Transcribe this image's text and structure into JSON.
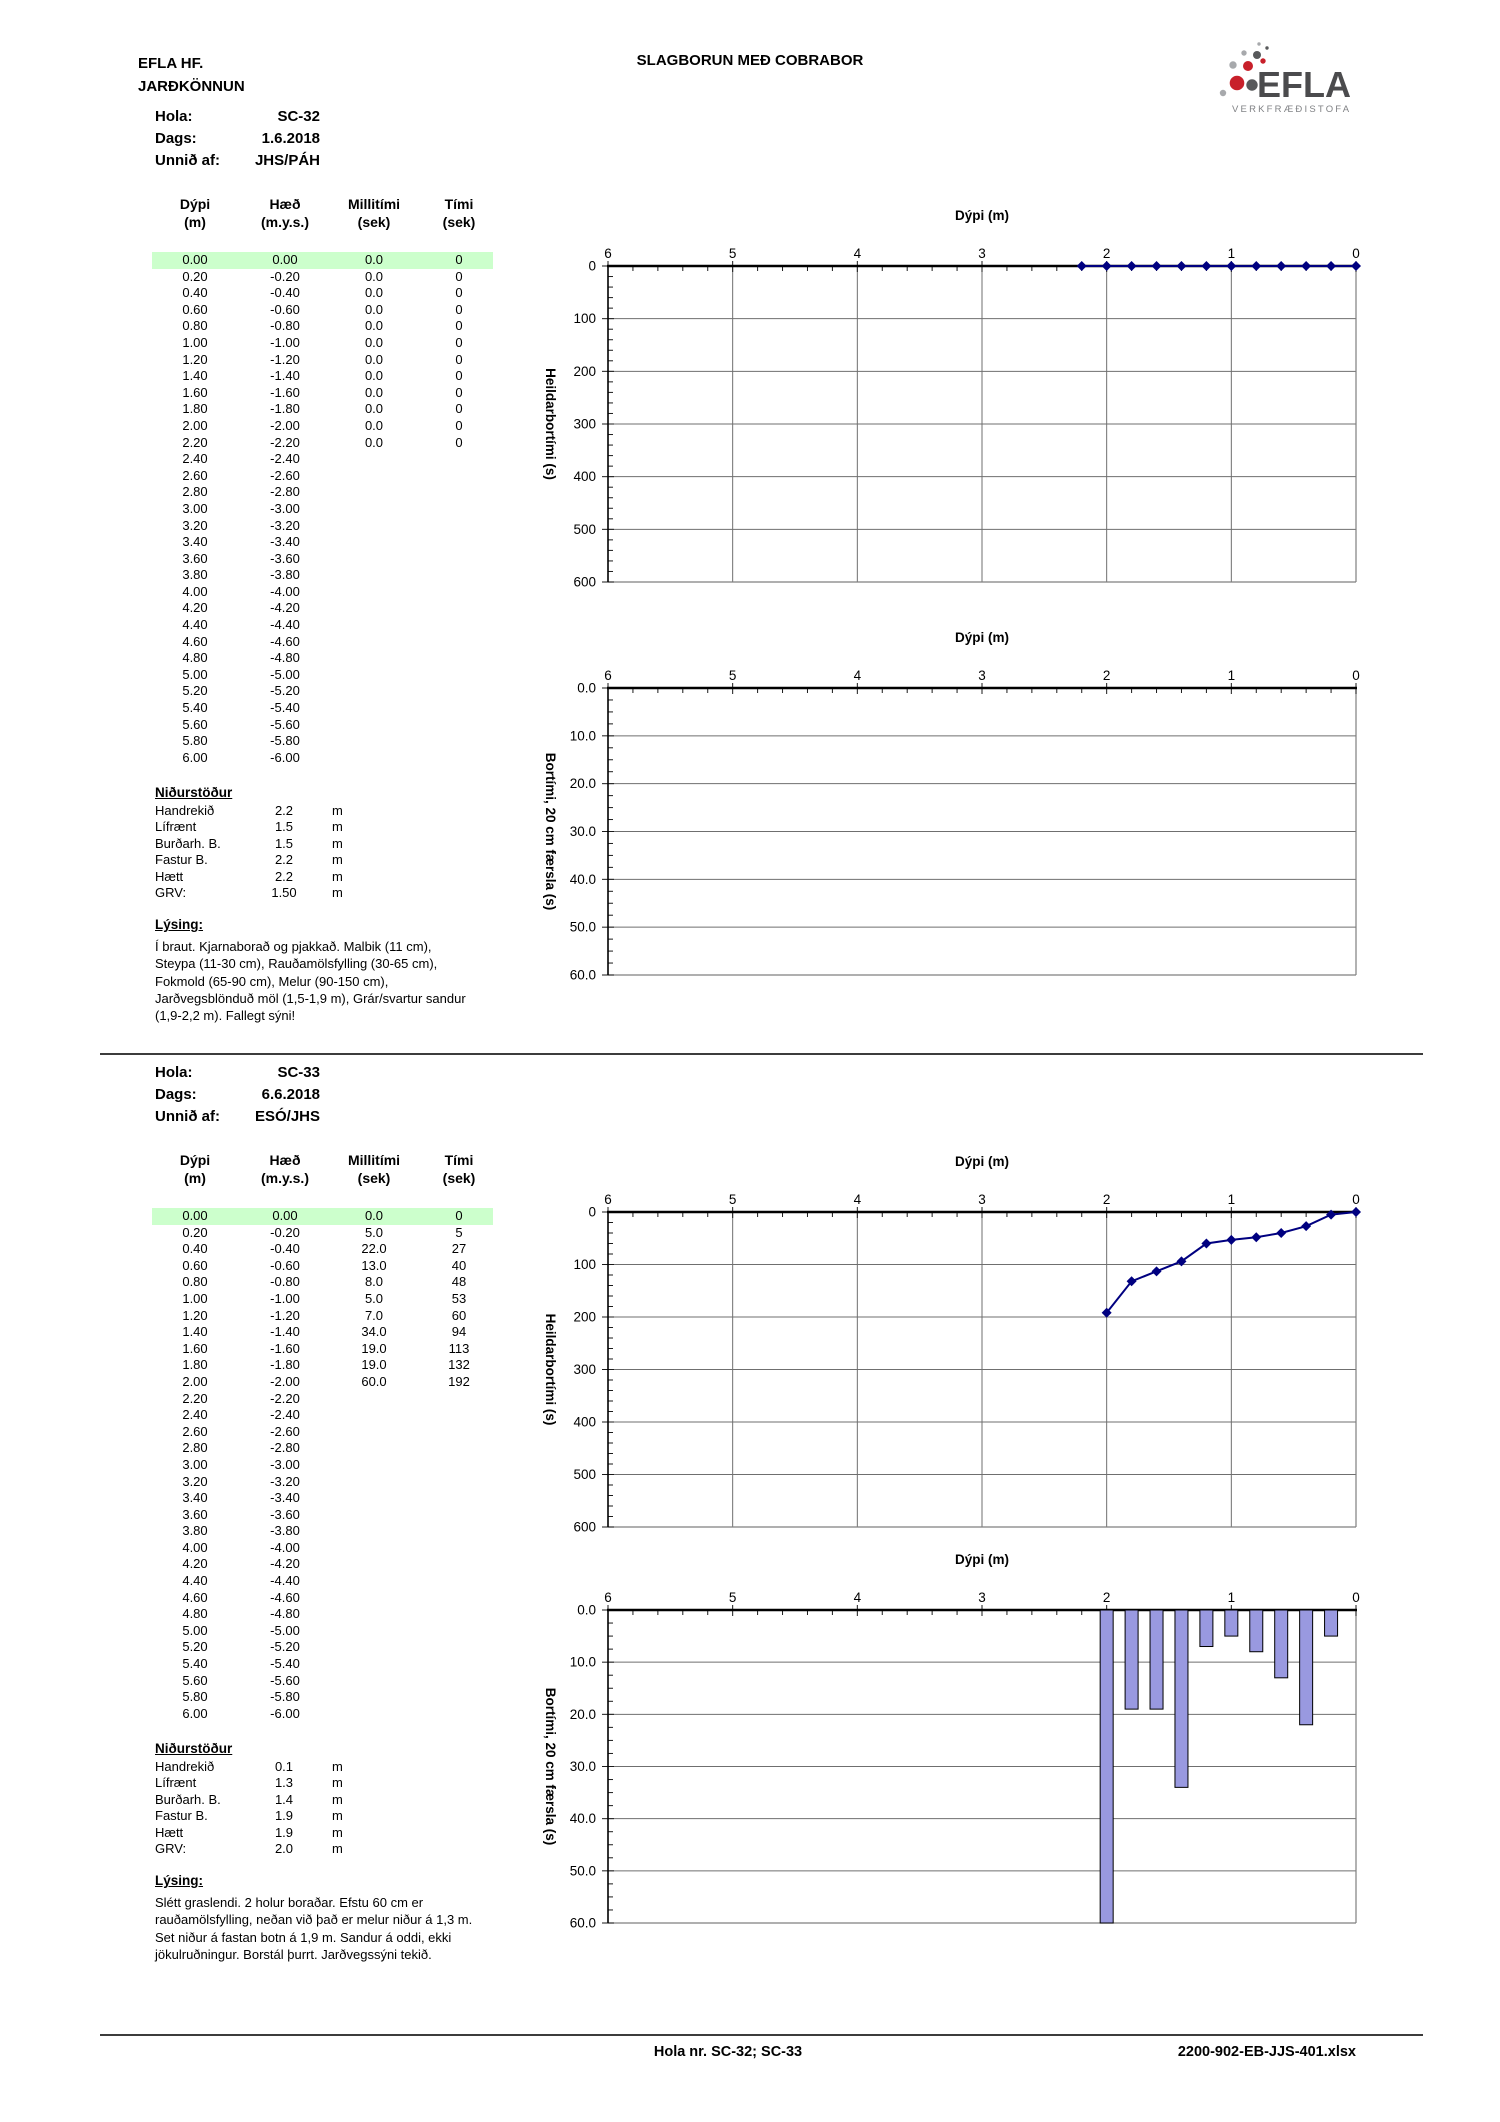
{
  "header": {
    "company": "EFLA HF.",
    "department": "JARÐKÖNNUN",
    "title": "SLAGBORUN MEÐ COBRABOR",
    "logo": {
      "wordmark": "EFLA",
      "subtitle": "VERKFRÆÐISTOFA"
    }
  },
  "colors": {
    "highlight": "#ccffcc",
    "logo_red": "#c8202a",
    "logo_dark": "#58595b",
    "logo_gray": "#a7a9ac",
    "wordmark": "#4b4b4d",
    "line": "#000080",
    "bar": "#9999e0"
  },
  "table_headers": [
    [
      "Dýpi",
      "(m)"
    ],
    [
      "Hæð",
      "(m.y.s.)"
    ],
    [
      "Millitími",
      "(sek)"
    ],
    [
      "Tími",
      "(sek)"
    ]
  ],
  "sections": [
    {
      "info": {
        "hola_label": "Hola:",
        "hola": "SC-32",
        "dags_label": "Dags:",
        "dags": "1.6.2018",
        "unnid_label": "Unnið af:",
        "unnid": "JHS/PÁH"
      },
      "rows": [
        [
          "0.00",
          "0.00",
          "0.0",
          "0"
        ],
        [
          "0.20",
          "-0.20",
          "0.0",
          "0"
        ],
        [
          "0.40",
          "-0.40",
          "0.0",
          "0"
        ],
        [
          "0.60",
          "-0.60",
          "0.0",
          "0"
        ],
        [
          "0.80",
          "-0.80",
          "0.0",
          "0"
        ],
        [
          "1.00",
          "-1.00",
          "0.0",
          "0"
        ],
        [
          "1.20",
          "-1.20",
          "0.0",
          "0"
        ],
        [
          "1.40",
          "-1.40",
          "0.0",
          "0"
        ],
        [
          "1.60",
          "-1.60",
          "0.0",
          "0"
        ],
        [
          "1.80",
          "-1.80",
          "0.0",
          "0"
        ],
        [
          "2.00",
          "-2.00",
          "0.0",
          "0"
        ],
        [
          "2.20",
          "-2.20",
          "0.0",
          "0"
        ],
        [
          "2.40",
          "-2.40",
          "",
          ""
        ],
        [
          "2.60",
          "-2.60",
          "",
          ""
        ],
        [
          "2.80",
          "-2.80",
          "",
          ""
        ],
        [
          "3.00",
          "-3.00",
          "",
          ""
        ],
        [
          "3.20",
          "-3.20",
          "",
          ""
        ],
        [
          "3.40",
          "-3.40",
          "",
          ""
        ],
        [
          "3.60",
          "-3.60",
          "",
          ""
        ],
        [
          "3.80",
          "-3.80",
          "",
          ""
        ],
        [
          "4.00",
          "-4.00",
          "",
          ""
        ],
        [
          "4.20",
          "-4.20",
          "",
          ""
        ],
        [
          "4.40",
          "-4.40",
          "",
          ""
        ],
        [
          "4.60",
          "-4.60",
          "",
          ""
        ],
        [
          "4.80",
          "-4.80",
          "",
          ""
        ],
        [
          "5.00",
          "-5.00",
          "",
          ""
        ],
        [
          "5.20",
          "-5.20",
          "",
          ""
        ],
        [
          "5.40",
          "-5.40",
          "",
          ""
        ],
        [
          "5.60",
          "-5.60",
          "",
          ""
        ],
        [
          "5.80",
          "-5.80",
          "",
          ""
        ],
        [
          "6.00",
          "-6.00",
          "",
          ""
        ]
      ],
      "results_title": "Niðurstöður",
      "results": [
        [
          "Handrekið",
          "2.2",
          "m"
        ],
        [
          "Lífrænt",
          "1.5",
          "m"
        ],
        [
          "Burðarh. B.",
          "1.5",
          "m"
        ],
        [
          "Fastur B.",
          "2.2",
          "m"
        ],
        [
          "Hætt",
          "2.2",
          "m"
        ],
        [
          "GRV:",
          "1.50",
          "m"
        ]
      ],
      "desc_title": "Lýsing:",
      "desc_lines": [
        "Í braut. Kjarnaborað og pjakkað. Malbik (11 cm),",
        "Steypa (11-30 cm), Rauðamölsfylling (30-65 cm),",
        "Fokmold (65-90 cm), Melur (90-150 cm),",
        "Jarðvegsblönduð möl (1,5-1,9 m), Grár/svartur sandur",
        "(1,9-2,2 m). Fallegt sýni!"
      ]
    },
    {
      "info": {
        "hola_label": "Hola:",
        "hola": "SC-33",
        "dags_label": "Dags:",
        "dags": "6.6.2018",
        "unnid_label": "Unnið af:",
        "unnid": "ESÓ/JHS"
      },
      "rows": [
        [
          "0.00",
          "0.00",
          "0.0",
          "0"
        ],
        [
          "0.20",
          "-0.20",
          "5.0",
          "5"
        ],
        [
          "0.40",
          "-0.40",
          "22.0",
          "27"
        ],
        [
          "0.60",
          "-0.60",
          "13.0",
          "40"
        ],
        [
          "0.80",
          "-0.80",
          "8.0",
          "48"
        ],
        [
          "1.00",
          "-1.00",
          "5.0",
          "53"
        ],
        [
          "1.20",
          "-1.20",
          "7.0",
          "60"
        ],
        [
          "1.40",
          "-1.40",
          "34.0",
          "94"
        ],
        [
          "1.60",
          "-1.60",
          "19.0",
          "113"
        ],
        [
          "1.80",
          "-1.80",
          "19.0",
          "132"
        ],
        [
          "2.00",
          "-2.00",
          "60.0",
          "192"
        ],
        [
          "2.20",
          "-2.20",
          "",
          ""
        ],
        [
          "2.40",
          "-2.40",
          "",
          ""
        ],
        [
          "2.60",
          "-2.60",
          "",
          ""
        ],
        [
          "2.80",
          "-2.80",
          "",
          ""
        ],
        [
          "3.00",
          "-3.00",
          "",
          ""
        ],
        [
          "3.20",
          "-3.20",
          "",
          ""
        ],
        [
          "3.40",
          "-3.40",
          "",
          ""
        ],
        [
          "3.60",
          "-3.60",
          "",
          ""
        ],
        [
          "3.80",
          "-3.80",
          "",
          ""
        ],
        [
          "4.00",
          "-4.00",
          "",
          ""
        ],
        [
          "4.20",
          "-4.20",
          "",
          ""
        ],
        [
          "4.40",
          "-4.40",
          "",
          ""
        ],
        [
          "4.60",
          "-4.60",
          "",
          ""
        ],
        [
          "4.80",
          "-4.80",
          "",
          ""
        ],
        [
          "5.00",
          "-5.00",
          "",
          ""
        ],
        [
          "5.20",
          "-5.20",
          "",
          ""
        ],
        [
          "5.40",
          "-5.40",
          "",
          ""
        ],
        [
          "5.60",
          "-5.60",
          "",
          ""
        ],
        [
          "5.80",
          "-5.80",
          "",
          ""
        ],
        [
          "6.00",
          "-6.00",
          "",
          ""
        ]
      ],
      "results_title": "Niðurstöður",
      "results": [
        [
          "Handrekið",
          "0.1",
          "m"
        ],
        [
          "Lífrænt",
          "1.3",
          "m"
        ],
        [
          "Burðarh. B.",
          "1.4",
          "m"
        ],
        [
          "Fastur B.",
          "1.9",
          "m"
        ],
        [
          "Hætt",
          "1.9",
          "m"
        ],
        [
          "GRV:",
          "2.0",
          "m"
        ]
      ],
      "desc_title": "Lýsing:",
      "desc_lines": [
        "Slétt graslendi. 2 holur boraðar. Efstu 60 cm er",
        "rauðamölsfylling, neðan við það er melur niður á 1,3 m.",
        "Set niður á fastan botn á 1,9 m. Sandur á oddi, ekki",
        "jökulruðningur. Borstál þurrt. Jarðvegssýni tekið."
      ]
    }
  ],
  "footer": {
    "left": "Hola nr. SC-32; SC-33",
    "right": "2200-902-EB-JJS-401.xlsx"
  },
  "chart_data": [
    {
      "id": "sc32-cumulative-time",
      "type": "line",
      "title": "Dýpi (m)",
      "ylabel": "Heildarbortími (s)",
      "xlim": [
        6,
        0
      ],
      "ylim": [
        0,
        600
      ],
      "xticks": [
        6,
        5,
        4,
        3,
        2,
        1,
        0
      ],
      "yticks": [
        0,
        100,
        200,
        300,
        400,
        500,
        600
      ],
      "ytick_labels": [
        "0",
        "100",
        "200",
        "300",
        "400",
        "500",
        "600"
      ],
      "xminor": 0.2,
      "yminor": 20,
      "grid_vertical": true,
      "line_color": "#000080",
      "series": [
        {
          "name": "SC-32 Tími (sek)",
          "x": [
            0.0,
            0.2,
            0.4,
            0.6,
            0.8,
            1.0,
            1.2,
            1.4,
            1.6,
            1.8,
            2.0,
            2.2
          ],
          "y": [
            0,
            0,
            0,
            0,
            0,
            0,
            0,
            0,
            0,
            0,
            0,
            0
          ]
        }
      ]
    },
    {
      "id": "sc32-interval-time",
      "type": "bar",
      "title": "Dýpi (m)",
      "ylabel": "Bortími, 20 cm færsla (s)",
      "xlim": [
        6,
        0
      ],
      "ylim": [
        0,
        60
      ],
      "xticks": [
        6,
        5,
        4,
        3,
        2,
        1,
        0
      ],
      "yticks": [
        0,
        10,
        20,
        30,
        40,
        50,
        60
      ],
      "ytick_labels": [
        "0.0",
        "10.0",
        "20.0",
        "30.0",
        "40.0",
        "50.0",
        "60.0"
      ],
      "xminor": 0.2,
      "yminor": 2.5,
      "grid_vertical": false,
      "bar_color": "#9999e0",
      "series": [
        {
          "name": "SC-32 Millitími (sek)",
          "x": [],
          "y": []
        }
      ]
    },
    {
      "id": "sc33-cumulative-time",
      "type": "line",
      "title": "Dýpi (m)",
      "ylabel": "Heildarbortími (s)",
      "xlim": [
        6,
        0
      ],
      "ylim": [
        0,
        600
      ],
      "xticks": [
        6,
        5,
        4,
        3,
        2,
        1,
        0
      ],
      "yticks": [
        0,
        100,
        200,
        300,
        400,
        500,
        600
      ],
      "ytick_labels": [
        "0",
        "100",
        "200",
        "300",
        "400",
        "500",
        "600"
      ],
      "xminor": 0.2,
      "yminor": 20,
      "grid_vertical": true,
      "line_color": "#000080",
      "series": [
        {
          "name": "SC-33 Tími (sek)",
          "x": [
            0.0,
            0.2,
            0.4,
            0.6,
            0.8,
            1.0,
            1.2,
            1.4,
            1.6,
            1.8,
            2.0
          ],
          "y": [
            0,
            5,
            27,
            40,
            48,
            53,
            60,
            94,
            113,
            132,
            192
          ]
        }
      ]
    },
    {
      "id": "sc33-interval-time",
      "type": "bar",
      "title": "Dýpi (m)",
      "ylabel": "Bortími, 20 cm færsla (s)",
      "xlim": [
        6,
        0
      ],
      "ylim": [
        0,
        60
      ],
      "xticks": [
        6,
        5,
        4,
        3,
        2,
        1,
        0
      ],
      "yticks": [
        0,
        10,
        20,
        30,
        40,
        50,
        60
      ],
      "ytick_labels": [
        "0.0",
        "10.0",
        "20.0",
        "30.0",
        "40.0",
        "50.0",
        "60.0"
      ],
      "xminor": 0.2,
      "yminor": 2.5,
      "grid_vertical": false,
      "bar_color": "#9999e0",
      "series": [
        {
          "name": "SC-33 Millitími (sek)",
          "x": [
            0.2,
            0.4,
            0.6,
            0.8,
            1.0,
            1.2,
            1.4,
            1.6,
            1.8,
            2.0
          ],
          "y": [
            5,
            22,
            13,
            8,
            5,
            7,
            34,
            19,
            19,
            60
          ]
        }
      ]
    }
  ]
}
